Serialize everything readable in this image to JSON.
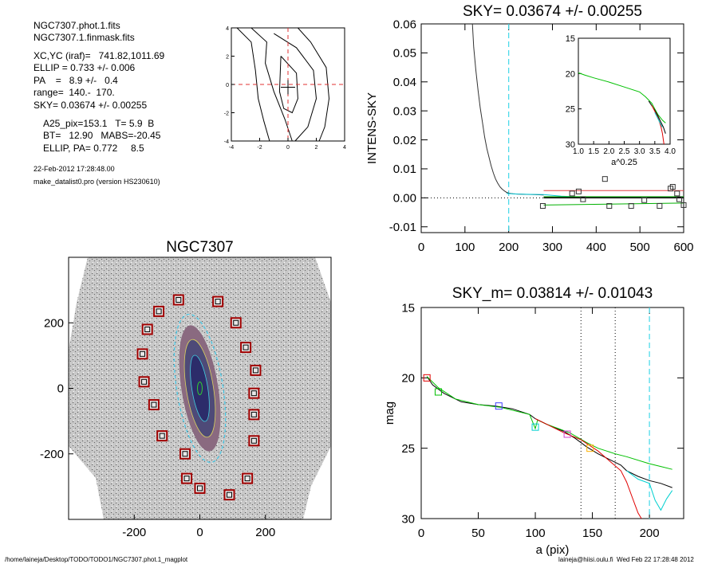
{
  "info": {
    "lines1": [
      "NGC7307.phot.1.fits",
      "NGC7307.1.finmask.fits"
    ],
    "lines2": [
      "XC,YC (iraf)=   741.82,1011.69",
      "ELLIP = 0.733 +/- 0.006",
      "PA    =   8.9 +/-   0.4",
      "range=  140.-  170.",
      "SKY= 0.03674 +/- 0.00255"
    ],
    "lines3": [
      "A25_pix=153.1   T= 5.9  B",
      "BT=   12.90   MABS=-20.45",
      "ELLIP, PA= 0.772     8.5"
    ],
    "date": "22-Feb-2012 17:28:48.00",
    "program": "make_datalist0.pro (version HS230610)"
  },
  "footer": {
    "left": "/home/laineja/Desktop/TODO/TODO1/NGC7307.phot.1_magplot",
    "right": "laineja@hiisi.oulu.fi  Wed Feb 22 17:28:48 2012"
  },
  "chart_data": [
    {
      "id": "contour",
      "type": "contour",
      "xlim": [
        -4,
        4
      ],
      "ylim": [
        -4,
        4
      ],
      "xticks": [
        -4,
        -2,
        0,
        2,
        4
      ],
      "yticks": [
        -4,
        -2,
        0,
        2,
        4
      ],
      "center_marker": [
        0,
        -0.2
      ],
      "contours": [
        [
          [
            -0.5,
            2.0
          ],
          [
            0.6,
            0.8
          ],
          [
            0.7,
            -1.0
          ],
          [
            0.3,
            -2.0
          ],
          [
            -0.3,
            -1.7
          ],
          [
            -0.6,
            -0.5
          ],
          [
            -0.5,
            2.0
          ]
        ],
        [
          [
            -1.0,
            3.6
          ],
          [
            0.6,
            2.6
          ],
          [
            1.8,
            1.0
          ],
          [
            2.0,
            -1.0
          ],
          [
            1.4,
            -3.0
          ],
          [
            0.5,
            -4.0
          ]
        ],
        [
          [
            -2.6,
            4.0
          ],
          [
            -1.5,
            3.0
          ],
          [
            -1.6,
            1.5
          ],
          [
            -1.0,
            -0.5
          ],
          [
            -0.2,
            -2.5
          ],
          [
            0.3,
            -4.0
          ]
        ],
        [
          [
            0.7,
            4.0
          ],
          [
            1.6,
            3.0
          ],
          [
            2.7,
            1.2
          ],
          [
            2.9,
            -1.0
          ],
          [
            2.6,
            -3.0
          ],
          [
            2.2,
            -4.0
          ]
        ],
        [
          [
            -3.6,
            4.0
          ],
          [
            -2.6,
            3.0
          ],
          [
            -2.3,
            1.0
          ],
          [
            -2.1,
            -1.0
          ],
          [
            -1.7,
            -2.6
          ],
          [
            -1.3,
            -4.0
          ]
        ]
      ]
    },
    {
      "id": "sky",
      "type": "line",
      "title": "SKY= 0.03674 +/- 0.00255",
      "xlabel": "",
      "ylabel": "INTENS-SKY",
      "xlim": [
        0,
        600
      ],
      "ylim": [
        -0.012,
        0.06
      ],
      "xticks": [
        0,
        100,
        200,
        300,
        400,
        500,
        600
      ],
      "yticks": [
        -0.01,
        0.0,
        0.01,
        0.02,
        0.03,
        0.04,
        0.05,
        0.06
      ],
      "ytick_labels": [
        "-0.01",
        "0.00",
        "0.01",
        "0.02",
        "0.03",
        "0.04",
        "0.05",
        "0.06"
      ],
      "vline": 200,
      "hline": 0,
      "profile": [
        [
          117,
          0.06
        ],
        [
          120,
          0.052
        ],
        [
          125,
          0.044
        ],
        [
          130,
          0.037
        ],
        [
          135,
          0.031
        ],
        [
          140,
          0.026
        ],
        [
          145,
          0.021
        ],
        [
          150,
          0.017
        ],
        [
          155,
          0.014
        ],
        [
          160,
          0.011
        ],
        [
          165,
          0.0085
        ],
        [
          170,
          0.0065
        ],
        [
          175,
          0.005
        ],
        [
          180,
          0.0038
        ],
        [
          185,
          0.003
        ],
        [
          190,
          0.0024
        ],
        [
          195,
          0.0019
        ],
        [
          200,
          0.0016
        ],
        [
          210,
          0.0014
        ],
        [
          220,
          0.0013
        ],
        [
          240,
          0.0012
        ],
        [
          260,
          0.0011
        ],
        [
          280,
          0.001
        ]
      ],
      "cyan_line": [
        [
          195,
          0.0015
        ],
        [
          220,
          0.0013
        ],
        [
          250,
          0.0012
        ],
        [
          280,
          0.0011
        ],
        [
          320,
          0.0006
        ],
        [
          360,
          0.0003
        ]
      ],
      "red_line": [
        [
          280,
          0.0025
        ],
        [
          600,
          0.0025
        ]
      ],
      "green_lines": [
        [
          [
            280,
            0.0004
          ],
          [
            600,
            0.0004
          ]
        ],
        [
          [
            280,
            -0.0025
          ],
          [
            600,
            -0.0018
          ]
        ]
      ],
      "black_fit": [
        [
          280,
          0.0
        ],
        [
          600,
          0.0
        ]
      ],
      "squares": [
        [
          278,
          -0.0028
        ],
        [
          345,
          0.0015
        ],
        [
          360,
          0.0022
        ],
        [
          370,
          -0.0005
        ],
        [
          420,
          0.0065
        ],
        [
          430,
          -0.0028
        ],
        [
          480,
          -0.0028
        ],
        [
          510,
          -0.0008
        ],
        [
          545,
          -0.0028
        ],
        [
          570,
          0.0032
        ],
        [
          575,
          0.0038
        ],
        [
          585,
          0.0015
        ],
        [
          590,
          -0.0005
        ],
        [
          600,
          -0.0025
        ]
      ]
    },
    {
      "id": "inset",
      "type": "line",
      "xlabel": "a^0.25",
      "xlim": [
        1.0,
        4.0
      ],
      "ylim": [
        15,
        30
      ],
      "xticks": [
        1.0,
        1.5,
        2.0,
        2.5,
        3.0,
        3.5,
        4.0
      ],
      "xtick_labels": [
        "1.0",
        "1.5",
        "2.0",
        "2.5",
        "3.0",
        "3.5",
        "4.0"
      ],
      "yticks": [
        15,
        20,
        25,
        30
      ],
      "series": [
        {
          "color": "#00c000",
          "points": [
            [
              1.0,
              19.9
            ],
            [
              1.2,
              20.2
            ],
            [
              1.5,
              20.6
            ],
            [
              2.0,
              21.2
            ],
            [
              2.5,
              21.9
            ],
            [
              3.0,
              22.6
            ],
            [
              3.2,
              23.3
            ],
            [
              3.4,
              24.2
            ],
            [
              3.5,
              25.0
            ],
            [
              3.6,
              25.8
            ],
            [
              3.75,
              26.6
            ],
            [
              3.85,
              27.0
            ]
          ]
        },
        {
          "color": "#000000",
          "points": [
            [
              3.3,
              23.9
            ],
            [
              3.5,
              25.2
            ],
            [
              3.6,
              26.0
            ],
            [
              3.7,
              26.9
            ],
            [
              3.78,
              27.6
            ],
            [
              3.85,
              28.5
            ]
          ]
        },
        {
          "color": "#e00000",
          "points": [
            [
              3.4,
              24.5
            ],
            [
              3.6,
              26.2
            ],
            [
              3.7,
              27.5
            ],
            [
              3.75,
              28.5
            ],
            [
              3.8,
              30
            ]
          ]
        },
        {
          "color": "#00d0d0",
          "points": [
            [
              3.5,
              25.5
            ],
            [
              3.65,
              26.8
            ],
            [
              3.75,
              27.6
            ]
          ]
        }
      ]
    },
    {
      "id": "galaxy",
      "type": "image",
      "title": "NGC7307",
      "xlim": [
        -400,
        400
      ],
      "ylim": [
        -400,
        400
      ],
      "xticks": [
        -200,
        0,
        200
      ],
      "yticks": [
        -200,
        0,
        200
      ],
      "xtick_labels": [
        "-200",
        "0",
        "200"
      ],
      "ytick_labels": [
        "-200",
        "0",
        "200"
      ],
      "sky_boxes": [
        [
          -65,
          270
        ],
        [
          55,
          265
        ],
        [
          -125,
          235
        ],
        [
          110,
          200
        ],
        [
          -160,
          180
        ],
        [
          140,
          125
        ],
        [
          -175,
          105
        ],
        [
          170,
          55
        ],
        [
          -170,
          20
        ],
        [
          165,
          -15
        ],
        [
          -140,
          -50
        ],
        [
          165,
          -80
        ],
        [
          -115,
          -145
        ],
        [
          165,
          -160
        ],
        [
          -45,
          -200
        ],
        [
          -40,
          -275
        ],
        [
          145,
          -275
        ],
        [
          0,
          -305
        ],
        [
          90,
          -325
        ]
      ]
    },
    {
      "id": "mag",
      "type": "line",
      "title": "SKY_m=  0.03814 +/- 0.01043",
      "xlabel": "a (pix)",
      "ylabel": "mag",
      "xlim": [
        0,
        230
      ],
      "ylim": [
        15,
        30
      ],
      "xticks": [
        0,
        50,
        100,
        150,
        200
      ],
      "yticks": [
        15,
        20,
        25,
        30
      ],
      "dotted_vlines": [
        140,
        170
      ],
      "cyan_vline": 200,
      "series": [
        {
          "color": "#000000",
          "points": [
            [
              5,
              19.9
            ],
            [
              10,
              20.5
            ],
            [
              20,
              21.1
            ],
            [
              35,
              21.7
            ],
            [
              50,
              21.9
            ],
            [
              65,
              22.0
            ],
            [
              80,
              22.2
            ],
            [
              95,
              22.6
            ],
            [
              100,
              22.9
            ],
            [
              110,
              23.3
            ],
            [
              125,
              23.8
            ],
            [
              135,
              24.3
            ],
            [
              145,
              24.9
            ],
            [
              155,
              25.4
            ],
            [
              165,
              25.8
            ],
            [
              175,
              26.2
            ],
            [
              180,
              26.6
            ],
            [
              190,
              27.0
            ],
            [
              200,
              27.3
            ],
            [
              210,
              27.5
            ],
            [
              220,
              27.8
            ]
          ]
        },
        {
          "color": "#00c000",
          "points": [
            [
              5,
              19.9
            ],
            [
              15,
              20.7
            ],
            [
              30,
              21.5
            ],
            [
              50,
              21.9
            ],
            [
              70,
              22.1
            ],
            [
              95,
              22.6
            ],
            [
              100,
              23.6
            ],
            [
              102,
              23.0
            ],
            [
              110,
              23.3
            ],
            [
              130,
              23.9
            ],
            [
              145,
              24.6
            ],
            [
              155,
              25.0
            ],
            [
              170,
              25.4
            ],
            [
              180,
              25.6
            ],
            [
              200,
              26.1
            ],
            [
              210,
              26.3
            ],
            [
              220,
              26.5
            ]
          ]
        },
        {
          "color": "#e00000",
          "points": [
            [
              100,
              22.9
            ],
            [
              125,
              23.9
            ],
            [
              140,
              24.4
            ],
            [
              155,
              25.2
            ],
            [
              165,
              25.9
            ],
            [
              175,
              26.6
            ],
            [
              180,
              27.4
            ],
            [
              185,
              28.5
            ],
            [
              190,
              29.6
            ],
            [
              193,
              30.0
            ]
          ]
        },
        {
          "color": "#00d0d0",
          "points": [
            [
              180,
              26.6
            ],
            [
              190,
              27.2
            ],
            [
              200,
              27.5
            ],
            [
              205,
              28.7
            ],
            [
              210,
              29.4
            ],
            [
              215,
              28.6
            ],
            [
              220,
              28.0
            ]
          ]
        }
      ],
      "squares": [
        {
          "x": 5,
          "y": 20.0,
          "color": "#e00000"
        },
        {
          "x": 15,
          "y": 21.0,
          "color": "#00c000"
        },
        {
          "x": 68,
          "y": 22.0,
          "color": "#4040ff"
        },
        {
          "x": 100,
          "y": 23.5,
          "color": "#00d0d0"
        },
        {
          "x": 128,
          "y": 24.0,
          "color": "#d040d0"
        },
        {
          "x": 148,
          "y": 25.0,
          "color": "#ffb000"
        }
      ]
    }
  ]
}
